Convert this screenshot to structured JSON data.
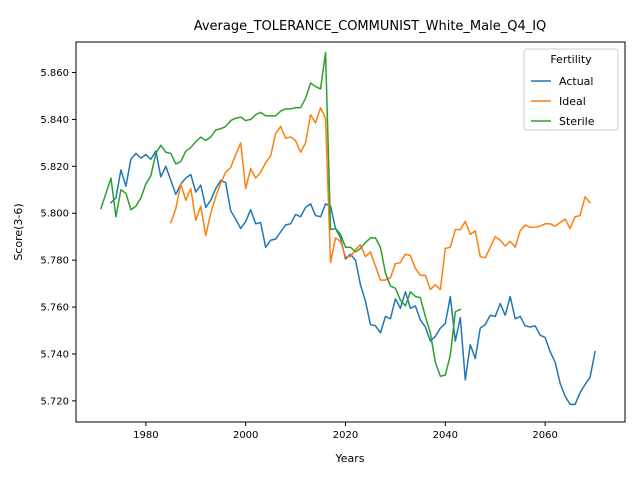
{
  "chart_data": {
    "type": "line",
    "title": "Average_TOLERANCE_COMMUNIST_White_Male_Q4_IQ",
    "xlabel": "Years",
    "ylabel": "Score(3-6)",
    "xlim": [
      1966,
      2076
    ],
    "ylim": [
      5.711,
      5.873
    ],
    "xticks": [
      1980,
      2000,
      2020,
      2040,
      2060
    ],
    "yticks": [
      5.72,
      5.74,
      5.76,
      5.78,
      5.8,
      5.82,
      5.84,
      5.86
    ],
    "ytick_labels": [
      "5.720",
      "5.740",
      "5.760",
      "5.780",
      "5.800",
      "5.820",
      "5.840",
      "5.860"
    ],
    "grid": false,
    "legend": {
      "title": "Fertility",
      "placement": "top-right"
    },
    "series": [
      {
        "name": "Actual",
        "color": "#1f77b4",
        "x_start": 1973,
        "values": [
          5.8045,
          5.8065,
          5.8185,
          5.8115,
          5.823,
          5.8255,
          5.8235,
          5.825,
          5.823,
          5.8265,
          5.8155,
          5.82,
          5.814,
          5.808,
          5.8125,
          5.815,
          5.8165,
          5.809,
          5.812,
          5.8025,
          5.8055,
          5.8105,
          5.814,
          5.813,
          5.801,
          5.7975,
          5.7935,
          5.7965,
          5.8015,
          5.7955,
          5.796,
          5.7855,
          5.7885,
          5.789,
          5.792,
          5.795,
          5.7955,
          5.7995,
          5.7985,
          5.8025,
          5.804,
          5.799,
          5.7985,
          5.804,
          5.803,
          5.7935,
          5.7895,
          5.7805,
          5.7825,
          5.78,
          5.7695,
          5.7625,
          5.7525,
          5.752,
          5.749,
          5.756,
          5.755,
          5.7635,
          5.7595,
          5.7665,
          5.7595,
          5.7605,
          5.7545,
          5.7515,
          5.7455,
          5.7475,
          5.751,
          5.753,
          5.7645,
          5.7455,
          5.7555,
          5.729,
          5.744,
          5.738,
          5.751,
          5.7525,
          5.7565,
          5.756,
          5.7615,
          5.7565,
          5.7645,
          5.755,
          5.756,
          5.752,
          5.7515,
          5.752,
          5.748,
          5.747,
          5.741,
          5.7365,
          5.7275,
          5.722,
          5.7185,
          5.7185,
          5.7235,
          5.727,
          5.73,
          5.741
        ]
      },
      {
        "name": "Ideal",
        "color": "#ff7f0e",
        "x_start": 1985,
        "values": [
          5.796,
          5.802,
          5.8125,
          5.8055,
          5.8105,
          5.797,
          5.803,
          5.7905,
          5.8,
          5.807,
          5.813,
          5.8175,
          5.8195,
          5.825,
          5.83,
          5.8105,
          5.819,
          5.815,
          5.8175,
          5.8215,
          5.8245,
          5.834,
          5.837,
          5.832,
          5.8325,
          5.831,
          5.826,
          5.83,
          5.842,
          5.8385,
          5.845,
          5.8405,
          5.779,
          5.7895,
          5.788,
          5.7815,
          5.7815,
          5.7845,
          5.7865,
          5.7815,
          5.7835,
          5.7775,
          5.7715,
          5.7715,
          5.7725,
          5.7785,
          5.779,
          5.7825,
          5.782,
          5.7765,
          5.7735,
          5.7735,
          5.7675,
          5.7695,
          5.7675,
          5.785,
          5.7855,
          5.793,
          5.793,
          5.7965,
          5.791,
          5.7925,
          5.7815,
          5.781,
          5.7855,
          5.79,
          5.7885,
          5.786,
          5.788,
          5.7855,
          5.7925,
          5.795,
          5.794,
          5.794,
          5.7945,
          5.7955,
          5.7955,
          5.7945,
          5.796,
          5.7975,
          5.7935,
          5.7985,
          5.799,
          5.807,
          5.8045
        ]
      },
      {
        "name": "Sterile",
        "color": "#2ca02c",
        "x_start": 1971,
        "values": [
          5.802,
          5.8085,
          5.815,
          5.7985,
          5.81,
          5.8085,
          5.8015,
          5.803,
          5.8065,
          5.8125,
          5.816,
          5.8255,
          5.829,
          5.826,
          5.8255,
          5.821,
          5.822,
          5.8265,
          5.828,
          5.8305,
          5.8325,
          5.831,
          5.8325,
          5.8355,
          5.836,
          5.837,
          5.8395,
          5.8405,
          5.841,
          5.8395,
          5.84,
          5.842,
          5.843,
          5.8415,
          5.8415,
          5.8415,
          5.8435,
          5.8445,
          5.8445,
          5.845,
          5.845,
          5.849,
          5.8555,
          5.854,
          5.853,
          5.8685,
          5.793,
          5.7935,
          5.791,
          5.7855,
          5.7855,
          5.7835,
          5.785,
          5.7875,
          5.7895,
          5.7895,
          5.7855,
          5.7745,
          5.769,
          5.768,
          5.763,
          5.7605,
          5.7665,
          5.7645,
          5.764,
          5.756,
          5.749,
          5.7365,
          5.7305,
          5.731,
          5.7395,
          5.758,
          5.759
        ]
      }
    ]
  }
}
